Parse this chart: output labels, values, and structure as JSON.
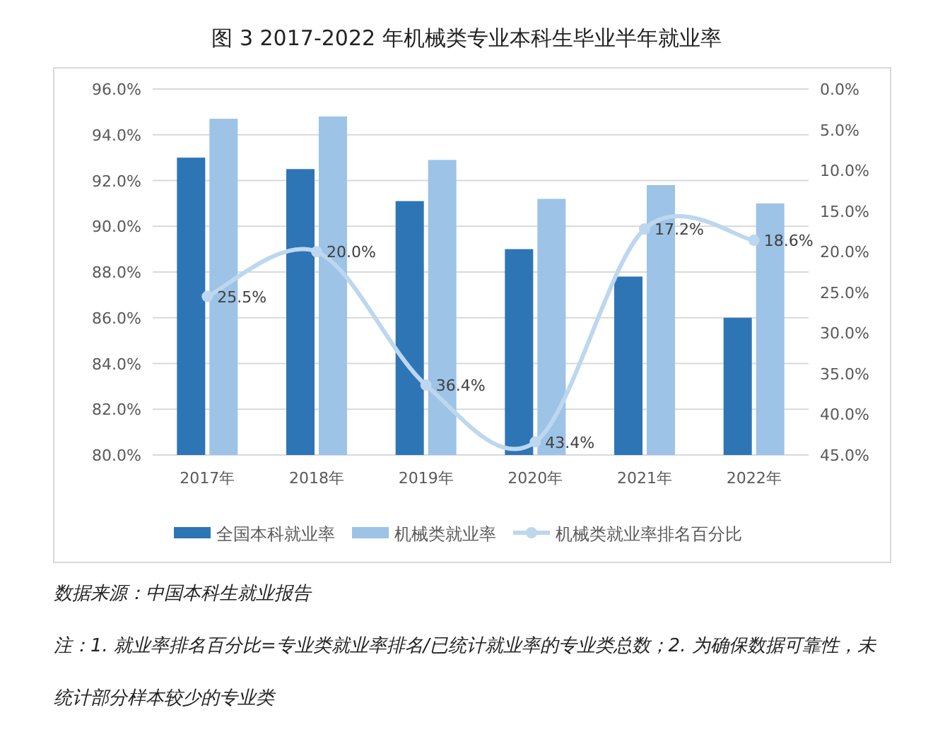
{
  "chart_data": {
    "type": "bar",
    "title": "图 3 2017-2022 年机械类专业本科生毕业半年就业率",
    "categories": [
      "2017年",
      "2018年",
      "2019年",
      "2020年",
      "2021年",
      "2022年"
    ],
    "series": [
      {
        "name": "全国本科就业率",
        "color": "#2e75b6",
        "values": [
          93.0,
          92.5,
          91.1,
          89.0,
          87.8,
          86.0
        ]
      },
      {
        "name": "机械类就业率",
        "color": "#9dc3e6",
        "values": [
          94.7,
          94.8,
          92.9,
          91.2,
          91.8,
          91.0
        ]
      },
      {
        "name": "机械类就业率排名百分比",
        "type": "line",
        "axis": "y2",
        "color": "#bdd7ee",
        "marker": "circle",
        "values": [
          25.5,
          20.0,
          36.4,
          43.4,
          17.2,
          18.6
        ],
        "value_labels": [
          "25.5%",
          "20.0%",
          "36.4%",
          "43.4%",
          "17.2%",
          "18.6%"
        ]
      }
    ],
    "ylim": [
      80,
      96
    ],
    "yticks": [
      {
        "value": 80,
        "label": "80.0%"
      },
      {
        "value": 82,
        "label": "82.0%"
      },
      {
        "value": 84,
        "label": "84.0%"
      },
      {
        "value": 86,
        "label": "86.0%"
      },
      {
        "value": 88,
        "label": "88.0%"
      },
      {
        "value": 90,
        "label": "90.0%"
      },
      {
        "value": 92,
        "label": "92.0%"
      },
      {
        "value": 94,
        "label": "94.0%"
      },
      {
        "value": 96,
        "label": "96.0%"
      }
    ],
    "y2lim": [
      45,
      0
    ],
    "y2ticks": [
      {
        "value": 0,
        "label": "0.0%"
      },
      {
        "value": 5,
        "label": "5.0%"
      },
      {
        "value": 10,
        "label": "10.0%"
      },
      {
        "value": 15,
        "label": "15.0%"
      },
      {
        "value": 20,
        "label": "20.0%"
      },
      {
        "value": 25,
        "label": "25.0%"
      },
      {
        "value": 30,
        "label": "30.0%"
      },
      {
        "value": 35,
        "label": "35.0%"
      },
      {
        "value": 40,
        "label": "40.0%"
      },
      {
        "value": 45,
        "label": "45.0%"
      }
    ],
    "grid": "y",
    "legend": "bottom",
    "annotations": [
      "数据来源：中国本科生就业报告",
      "注：1. 就业率排名百分比=专业类就业率排名/已统计就业率的专业类总数；2. 为确保数据可靠性，未统计部分样本较少的专业类"
    ]
  }
}
